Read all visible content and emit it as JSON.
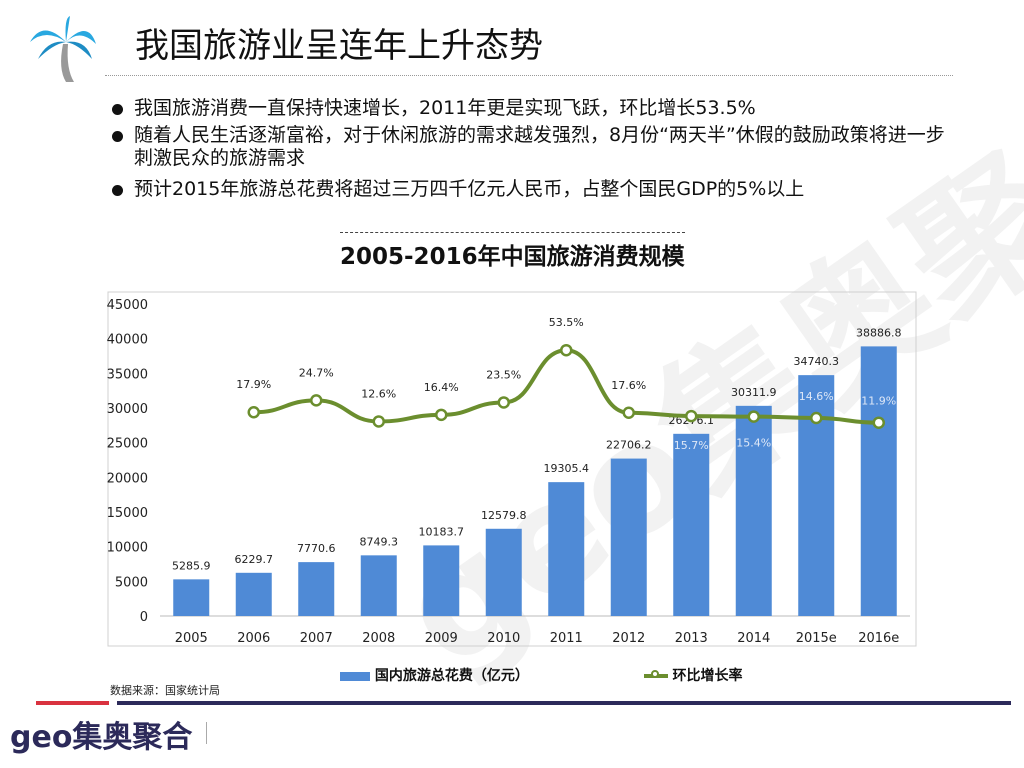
{
  "header": {
    "title": "我国旅游业呈连年上升态势"
  },
  "bullets": [
    "我国旅游消费一直保持快速增长，2011年更是实现飞跃，环比增长53.5%",
    "随着人民生活逐渐富裕，对于休闲旅游的需求越发强烈，8月份“两天半”休假的鼓励政策将进一步刺激民众的旅游需求",
    "预计2015年旅游总花费将超过三万四千亿元人民币，占整个国民GDP的5%以上"
  ],
  "footer": {
    "source": "数据来源：国家统计局",
    "logo": "geo集奥聚合",
    "watermark": "geo集奥聚合"
  },
  "chart_data": {
    "type": "bar",
    "title": "2005-2016年中国旅游消费规模",
    "categories": [
      "2005",
      "2006",
      "2007",
      "2008",
      "2009",
      "2010",
      "2011",
      "2012",
      "2013",
      "2014",
      "2015e",
      "2016e"
    ],
    "ylim": [
      0,
      45000
    ],
    "yticks": [
      "0",
      "5000",
      "10000",
      "15000",
      "20000",
      "25000",
      "30000",
      "35000",
      "40000",
      "45000"
    ],
    "series": [
      {
        "name": "国内旅游总花费（亿元）",
        "type": "bar",
        "color": "#4f8ad6",
        "values": [
          5285.9,
          6229.7,
          7770.6,
          8749.3,
          10183.7,
          12579.8,
          19305.4,
          22706.2,
          26276.1,
          30311.9,
          34740.3,
          38886.8
        ],
        "labels": [
          "5285.9",
          "6229.7",
          "7770.6",
          "8749.3",
          "10183.7",
          "12579.8",
          "19305.4",
          "22706.2",
          "26276.1",
          "30311.9",
          "34740.3",
          "38886.8"
        ]
      },
      {
        "name": "环比增长率",
        "type": "line",
        "color": "#6b8e2e",
        "axis": "secondary-hidden",
        "ylim": [
          -99,
          80
        ],
        "values": [
          null,
          17.9,
          24.7,
          12.6,
          16.4,
          23.5,
          53.5,
          17.6,
          15.7,
          15.4,
          14.6,
          11.9
        ],
        "labels": [
          "",
          "17.9%",
          "24.7%",
          "12.6%",
          "16.4%",
          "23.5%",
          "53.5%",
          "17.6%",
          "15.7%",
          "15.4%",
          "14.6%",
          "11.9%"
        ]
      }
    ],
    "grid": false,
    "legend": "bottom"
  }
}
